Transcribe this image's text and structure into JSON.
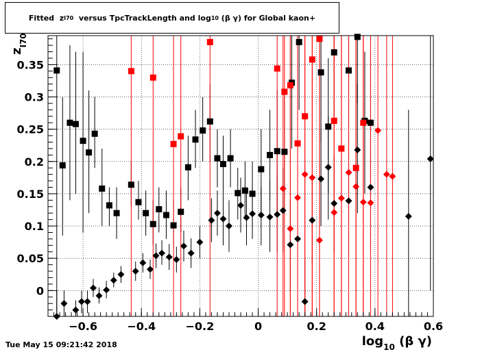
{
  "timestamp": "Tue May 15 09:21:42 2018",
  "chart_data": {
    "type": "scatter",
    "title_parts": {
      "pre": "Fitted  z",
      "sub1": "I70",
      "mid": "  versus TpcTrackLength and log",
      "sub2": "10",
      "post": " (β γ) for Global kaon+"
    },
    "xlabel": {
      "main": "log",
      "sub": "10",
      "tail": " (β γ)"
    },
    "ylabel": {
      "main": "z",
      "sub": "I70"
    },
    "xlim": [
      -0.72,
      0.6
    ],
    "ylim": [
      -0.04,
      0.395
    ],
    "grid": true,
    "x_ticks": [
      -0.6,
      -0.4,
      -0.2,
      0,
      0.2,
      0.4,
      0.6
    ],
    "x_tick_labels": [
      "−0.6",
      "−0.4",
      "−0.2",
      "0",
      "0.2",
      "0.4",
      "0.6"
    ],
    "y_ticks": [
      0,
      0.05,
      0.1,
      0.15,
      0.2,
      0.25,
      0.3,
      0.35
    ],
    "y_tick_labels": [
      "0",
      "0.05",
      "0.1",
      "0.15",
      "0.2",
      "0.25",
      "0.3",
      "0.35"
    ],
    "series": [
      {
        "marker": "square",
        "color": "#000000",
        "points": [
          {
            "x": -0.69,
            "y": 0.341,
            "lo": -0.04,
            "hi": 0.395
          },
          {
            "x": -0.67,
            "y": 0.194,
            "lo": 0.085,
            "hi": 0.3
          },
          {
            "x": -0.645,
            "y": 0.26,
            "lo": 0.14,
            "hi": 0.38
          },
          {
            "x": -0.625,
            "y": 0.258,
            "lo": 0.15,
            "hi": 0.37
          },
          {
            "x": -0.6,
            "y": 0.232,
            "lo": 0.09,
            "hi": 0.37
          },
          {
            "x": -0.58,
            "y": 0.214,
            "lo": 0.12,
            "hi": 0.31
          },
          {
            "x": -0.56,
            "y": 0.243,
            "lo": 0.19,
            "hi": 0.3
          },
          {
            "x": -0.535,
            "y": 0.158,
            "lo": 0.1,
            "hi": 0.22
          },
          {
            "x": -0.51,
            "y": 0.132,
            "lo": 0.1,
            "hi": 0.16
          },
          {
            "x": -0.485,
            "y": 0.12,
            "lo": 0.08,
            "hi": 0.16
          },
          {
            "x": -0.435,
            "y": 0.164,
            "lo": 0.13,
            "hi": 0.2
          },
          {
            "x": -0.41,
            "y": 0.137,
            "lo": 0.11,
            "hi": 0.17
          },
          {
            "x": -0.385,
            "y": 0.12,
            "lo": 0.085,
            "hi": 0.155
          },
          {
            "x": -0.36,
            "y": 0.103,
            "lo": 0.07,
            "hi": 0.14
          },
          {
            "x": -0.34,
            "y": 0.126,
            "lo": 0.09,
            "hi": 0.16
          },
          {
            "x": -0.315,
            "y": 0.117,
            "lo": 0.08,
            "hi": 0.155
          },
          {
            "x": -0.29,
            "y": 0.101,
            "lo": 0.065,
            "hi": 0.14
          },
          {
            "x": -0.265,
            "y": 0.122,
            "lo": 0.09,
            "hi": 0.16
          },
          {
            "x": -0.24,
            "y": 0.191,
            "lo": 0.14,
            "hi": 0.24
          },
          {
            "x": -0.215,
            "y": 0.234,
            "lo": 0.19,
            "hi": 0.28
          },
          {
            "x": -0.19,
            "y": 0.248,
            "lo": 0.2,
            "hi": 0.3
          },
          {
            "x": -0.165,
            "y": 0.262,
            "lo": 0.2,
            "hi": 0.32
          },
          {
            "x": -0.14,
            "y": 0.205,
            "lo": 0.16,
            "hi": 0.25
          },
          {
            "x": -0.12,
            "y": 0.196,
            "lo": 0.15,
            "hi": 0.24
          },
          {
            "x": -0.095,
            "y": 0.205,
            "lo": 0.16,
            "hi": 0.25
          },
          {
            "x": -0.07,
            "y": 0.151,
            "lo": 0.11,
            "hi": 0.19
          },
          {
            "x": -0.045,
            "y": 0.155,
            "lo": 0.11,
            "hi": 0.2
          },
          {
            "x": -0.02,
            "y": 0.15,
            "lo": 0.1,
            "hi": 0.2
          },
          {
            "x": 0.01,
            "y": 0.188,
            "lo": 0.12,
            "hi": 0.25
          },
          {
            "x": 0.04,
            "y": 0.21,
            "lo": 0.14,
            "hi": 0.28
          },
          {
            "x": 0.065,
            "y": 0.216,
            "lo": 0.12,
            "hi": 0.31
          },
          {
            "x": 0.09,
            "y": 0.215,
            "lo": 0.12,
            "hi": 0.31
          },
          {
            "x": 0.115,
            "y": 0.322,
            "lo": 0.22,
            "hi": 0.395
          },
          {
            "x": 0.14,
            "y": 0.385,
            "lo": 0.28,
            "hi": 0.395
          },
          {
            "x": 0.215,
            "y": 0.338,
            "lo": 0.23,
            "hi": 0.395
          },
          {
            "x": 0.24,
            "y": 0.254,
            "lo": 0.15,
            "hi": 0.36
          },
          {
            "x": 0.26,
            "y": 0.369,
            "lo": 0.26,
            "hi": 0.395
          },
          {
            "x": 0.31,
            "y": 0.341,
            "lo": 0.23,
            "hi": 0.395
          },
          {
            "x": 0.34,
            "y": 0.393,
            "lo": 0.29,
            "hi": 0.395
          },
          {
            "x": 0.365,
            "y": 0.263,
            "lo": 0.15,
            "hi": 0.37
          },
          {
            "x": 0.385,
            "y": 0.26,
            "lo": 0.15,
            "hi": 0.37
          }
        ]
      },
      {
        "marker": "diamond",
        "color": "#000000",
        "points": [
          {
            "x": -0.69,
            "y": -0.04,
            "lo": -0.04,
            "hi": 0.0
          },
          {
            "x": -0.665,
            "y": -0.02,
            "lo": -0.04,
            "hi": 0.0
          },
          {
            "x": -0.625,
            "y": -0.03,
            "lo": -0.04,
            "hi": -0.015
          },
          {
            "x": -0.605,
            "y": -0.017,
            "lo": -0.035,
            "hi": 0.0
          },
          {
            "x": -0.585,
            "y": -0.017,
            "lo": -0.035,
            "hi": 0.0
          },
          {
            "x": -0.565,
            "y": 0.004,
            "lo": -0.01,
            "hi": 0.018
          },
          {
            "x": -0.545,
            "y": -0.008,
            "lo": -0.02,
            "hi": 0.005
          },
          {
            "x": -0.52,
            "y": 0.001,
            "lo": -0.012,
            "hi": 0.015
          },
          {
            "x": -0.495,
            "y": 0.016,
            "lo": 0.005,
            "hi": 0.028
          },
          {
            "x": -0.47,
            "y": 0.025,
            "lo": 0.012,
            "hi": 0.038
          },
          {
            "x": -0.42,
            "y": 0.03,
            "lo": 0.015,
            "hi": 0.045
          },
          {
            "x": -0.395,
            "y": 0.043,
            "lo": 0.028,
            "hi": 0.058
          },
          {
            "x": -0.37,
            "y": 0.033,
            "lo": 0.018,
            "hi": 0.048
          },
          {
            "x": -0.35,
            "y": 0.054,
            "lo": 0.035,
            "hi": 0.073
          },
          {
            "x": -0.33,
            "y": 0.058,
            "lo": 0.04,
            "hi": 0.078
          },
          {
            "x": -0.305,
            "y": 0.052,
            "lo": 0.032,
            "hi": 0.072
          },
          {
            "x": -0.28,
            "y": 0.048,
            "lo": 0.028,
            "hi": 0.068
          },
          {
            "x": -0.255,
            "y": 0.069,
            "lo": 0.045,
            "hi": 0.093
          },
          {
            "x": -0.23,
            "y": 0.058,
            "lo": 0.035,
            "hi": 0.081
          },
          {
            "x": -0.2,
            "y": 0.075,
            "lo": 0.05,
            "hi": 0.1
          },
          {
            "x": -0.16,
            "y": 0.109,
            "lo": 0.075,
            "hi": 0.143
          },
          {
            "x": -0.14,
            "y": 0.12,
            "lo": 0.085,
            "hi": 0.155
          },
          {
            "x": -0.12,
            "y": 0.111,
            "lo": 0.07,
            "hi": 0.15
          },
          {
            "x": -0.1,
            "y": 0.1,
            "lo": 0.06,
            "hi": 0.14
          },
          {
            "x": -0.06,
            "y": 0.132,
            "lo": 0.09,
            "hi": 0.175
          },
          {
            "x": -0.04,
            "y": 0.113,
            "lo": 0.07,
            "hi": 0.155
          },
          {
            "x": -0.02,
            "y": 0.119,
            "lo": 0.08,
            "hi": 0.16
          },
          {
            "x": 0.01,
            "y": 0.117,
            "lo": 0.07,
            "hi": 0.16
          },
          {
            "x": 0.04,
            "y": 0.114,
            "lo": 0.06,
            "hi": 0.17
          },
          {
            "x": 0.065,
            "y": 0.118,
            "lo": 0.06,
            "hi": 0.18
          },
          {
            "x": 0.085,
            "y": 0.124,
            "lo": 0.06,
            "hi": 0.19
          },
          {
            "x": 0.11,
            "y": 0.071,
            "lo": 0.0,
            "hi": 0.14
          },
          {
            "x": 0.135,
            "y": 0.08,
            "lo": 0.01,
            "hi": 0.15
          },
          {
            "x": 0.16,
            "y": -0.017,
            "lo": -0.04,
            "hi": 0.05
          },
          {
            "x": 0.185,
            "y": 0.109,
            "lo": 0.04,
            "hi": 0.18
          },
          {
            "x": 0.215,
            "y": 0.173,
            "lo": 0.1,
            "hi": 0.25
          },
          {
            "x": 0.24,
            "y": 0.191,
            "lo": 0.11,
            "hi": 0.27
          },
          {
            "x": 0.26,
            "y": 0.135,
            "lo": 0.06,
            "hi": 0.21
          },
          {
            "x": 0.31,
            "y": 0.139,
            "lo": 0.05,
            "hi": 0.23
          },
          {
            "x": 0.34,
            "y": 0.218,
            "lo": 0.12,
            "hi": 0.32
          },
          {
            "x": 0.385,
            "y": 0.16,
            "lo": 0.06,
            "hi": 0.26
          },
          {
            "x": 0.515,
            "y": 0.115,
            "lo": -0.04,
            "hi": 0.28
          },
          {
            "x": 0.59,
            "y": 0.204,
            "lo": 0.0,
            "hi": 0.395
          }
        ]
      },
      {
        "marker": "square",
        "color": "#ff0000",
        "points": [
          {
            "x": -0.435,
            "y": 0.34,
            "lo": -0.04,
            "hi": 0.395
          },
          {
            "x": -0.36,
            "y": 0.33,
            "lo": -0.04,
            "hi": 0.395
          },
          {
            "x": -0.29,
            "y": 0.227,
            "lo": -0.04,
            "hi": 0.395
          },
          {
            "x": -0.265,
            "y": 0.239,
            "lo": -0.04,
            "hi": 0.395
          },
          {
            "x": -0.165,
            "y": 0.385,
            "lo": -0.04,
            "hi": 0.395
          },
          {
            "x": 0.065,
            "y": 0.344,
            "lo": -0.04,
            "hi": 0.395
          },
          {
            "x": 0.09,
            "y": 0.308,
            "lo": -0.04,
            "hi": 0.395
          },
          {
            "x": 0.11,
            "y": 0.318,
            "lo": -0.04,
            "hi": 0.395
          },
          {
            "x": 0.135,
            "y": 0.228,
            "lo": -0.04,
            "hi": 0.395
          },
          {
            "x": 0.16,
            "y": 0.27,
            "lo": -0.04,
            "hi": 0.395
          },
          {
            "x": 0.185,
            "y": 0.358,
            "lo": -0.04,
            "hi": 0.395
          },
          {
            "x": 0.21,
            "y": 0.39,
            "lo": -0.04,
            "hi": 0.395
          },
          {
            "x": 0.26,
            "y": 0.263,
            "lo": -0.04,
            "hi": 0.395
          },
          {
            "x": 0.285,
            "y": 0.22,
            "lo": -0.04,
            "hi": 0.395
          },
          {
            "x": 0.335,
            "y": 0.19,
            "lo": -0.04,
            "hi": 0.395
          },
          {
            "x": 0.36,
            "y": 0.26,
            "lo": -0.04,
            "hi": 0.395
          }
        ]
      },
      {
        "marker": "diamond",
        "color": "#ff0000",
        "points": [
          {
            "x": 0.085,
            "y": 0.158,
            "lo": -0.04,
            "hi": 0.395
          },
          {
            "x": 0.11,
            "y": 0.096,
            "lo": -0.04,
            "hi": 0.395
          },
          {
            "x": 0.135,
            "y": 0.144,
            "lo": -0.04,
            "hi": 0.395
          },
          {
            "x": 0.16,
            "y": 0.18,
            "lo": -0.04,
            "hi": 0.395
          },
          {
            "x": 0.185,
            "y": 0.175,
            "lo": -0.04,
            "hi": 0.395
          },
          {
            "x": 0.21,
            "y": 0.078,
            "lo": -0.04,
            "hi": 0.395
          },
          {
            "x": 0.26,
            "y": 0.121,
            "lo": -0.04,
            "hi": 0.395
          },
          {
            "x": 0.285,
            "y": 0.143,
            "lo": -0.04,
            "hi": 0.395
          },
          {
            "x": 0.31,
            "y": 0.183,
            "lo": -0.04,
            "hi": 0.395
          },
          {
            "x": 0.335,
            "y": 0.161,
            "lo": -0.04,
            "hi": 0.395
          },
          {
            "x": 0.36,
            "y": 0.137,
            "lo": -0.04,
            "hi": 0.395
          },
          {
            "x": 0.385,
            "y": 0.136,
            "lo": -0.04,
            "hi": 0.395
          },
          {
            "x": 0.41,
            "y": 0.248,
            "lo": -0.04,
            "hi": 0.395
          },
          {
            "x": 0.44,
            "y": 0.18,
            "lo": -0.04,
            "hi": 0.395
          },
          {
            "x": 0.46,
            "y": 0.177,
            "lo": -0.04,
            "hi": 0.395
          }
        ]
      }
    ]
  }
}
